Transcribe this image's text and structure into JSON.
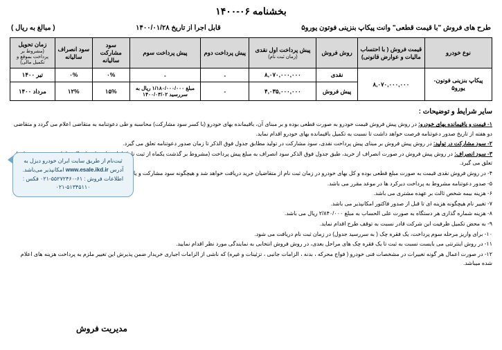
{
  "title": "بخشنامه ۰۶-۱۴۰۰",
  "header": {
    "right": "طرح های فروش \"با قیمت قطعی\" وانت پیکاپ بنزینی فوتون یورو۵",
    "center": "قابل اجرا از تاریخ ۱۴۰۰/۰۱/۲۸",
    "left": "( مبالغ به ریال )"
  },
  "table": {
    "headers": {
      "car_type": "نوع خودرو",
      "price": "قیمت فروش ( با احتساب مالیات و عوارض قانونی)",
      "method": "روش فروش",
      "pre1": "پیش پرداخت اول نقدی",
      "pre1_sub": "(زمان ثبت نام)",
      "pre2": "پیش پرداخت دوم",
      "pre3": "پیش پرداخت سوم",
      "sood": "سود مشارکت سالیانه",
      "ensraf": "سود انصراف سالیانه",
      "delivery": "زمان تحویل",
      "delivery_sub": "(مشروط بر پرداخت بموقع و تکمیل مالی)"
    },
    "rows": [
      {
        "car_type": "پیکاپ بنزینی فوتون- یورو۵",
        "price": "۸,۰۷۰,۰۰۰,۰۰۰",
        "method": "نقدی",
        "pre1": "۸,۰۷۰,۰۰۰,۰۰۰",
        "pre2": "-",
        "pre3": "-",
        "sood": "۰%",
        "ensraf": "۰%",
        "delivery": "تیر ۱۴۰۰"
      },
      {
        "method": "پیش فروش",
        "pre1": "۴,۰۳۵,۰۰۰,۰۰۰",
        "pre2": "-",
        "pre3": "مبلغ ۱/۱۸۰/۰۰۰/۰۰۰ ریال به سررسید ۱۴۰۰/۰۳/۰۲",
        "sood": "۱۵%",
        "ensraf": "۱۲%",
        "delivery": "مرداد ۱۴۰۰"
      }
    ]
  },
  "terms_title": "سایر شرایط و توضیحات :",
  "terms": [
    {
      "key": "۱- قیمت و باقیمانده بهای خودرو:",
      "text": " در روش پیش فروش قیمت خودرو به صورت قطعی بوده و بر مبنای آن، باقیمانده بهای خودرو (با کسر سود مشارکت) محاسبه و طی دعوتنامه به متقاضی اعلام می گردد و متقاضی دو هفته از تاریخ صدور دعوتنامه فرصت خواهد داشت تا نسبت به تکمیل باقیمانده بهای خودرو اقدام نماید."
    },
    {
      "key": "۲- سود مشارکت در تولید:",
      "text": " در روش پیش فروش بر مبنای پیش پرداخت نقدی، سود مشارکت در تولید مطابق جدول فوق الذکر تا زمان صدور دعوتنامه تعلق می گیرد."
    },
    {
      "key": "۳- سود انصراف:",
      "text": " در روش پیش فروش در صورت انصراف از خرید، طبق جدول فوق الذکر سود انصراف به مبلغ پیش پرداخت (مشروط بر گذشت یکماه از ثبت نام) تا تاریخ انصراف (حداکثر تا تاریخ صدور دعوتنامه) تعلق می گیرد."
    },
    {
      "key": "",
      "text": "۴- در روش فروش نقدی قیمت به صورت مبلغ قطعی بوده و کل بهای خودرو در زمان ثبت نام از متقاضیان خرید دریافت خواهد شد و هیچگونه سود مشارکت و یا سود انصراف به مبالغ پرداختی تعلق نمی گیرد."
    },
    {
      "key": "",
      "text": "۵- صدور دعوتنامه مشروط به پرداخت دیرکرد ها در موعد مقرر می باشد."
    },
    {
      "key": "",
      "text": "۶- هزینه بیمه شخص ثالث بر عهده مشتری می باشد."
    },
    {
      "key": "",
      "text": "۷- تغییر نام هیچگونه هزینه ای تا قبل از صدور فاکتور امکانپذیر می باشد."
    },
    {
      "key": "",
      "text": "۸- هزینه شماره گذاری هر دستگاه به صورت علی الحساب به مبلغ ۲/۸۴۰/۰۰۰ ریال می باشد."
    },
    {
      "key": "",
      "text": "۹- به محض تکمیل ظرفیت این شرکت قادر نسبت به توقف طرح اقدام نماید."
    },
    {
      "key": "",
      "text": "۱۰- برای واریز مرحله سوم پرداخت، یک فقره چک ( به سررسید جدول) در زمان ثبت نام دریافت می شود."
    },
    {
      "key": "",
      "text": "۱۱- در روش اینترنتی می بایست نسبت به ثبت تا یک فقره چک های مراحل بعدی، در روش فروش انتخابی به نمایندگی مورد نظر اقدام نمایید."
    },
    {
      "key": "",
      "text": "۱۲- در صورت اعمال هر گونه تغییرات در مشخصات فنی خودرو ( فواج محرکه ، بدنه ، الزامات جانبی ، تزئینات و غیره) که ناشی از الزامات اجباری خریدار ضمن پذیرش این تغییر ملزم به پرداخت هزینه های اعلام شده میباشد."
    }
  ],
  "side_box": {
    "line1": "ثبت‌نام از طریق سایت ایران خودرو دیزل به آدرس",
    "url": "www.esale.ikd.ir",
    "line1b": " امکانپذیر می‌باشد.",
    "line2": "اطلاعات فروش : ۶۱-۵۵۲۷۲۴۶۰-۰۲۱  فکس : ۵۱۳۴۵۱۱۰-۰۲۱"
  },
  "footer": "مدیریت فروش"
}
